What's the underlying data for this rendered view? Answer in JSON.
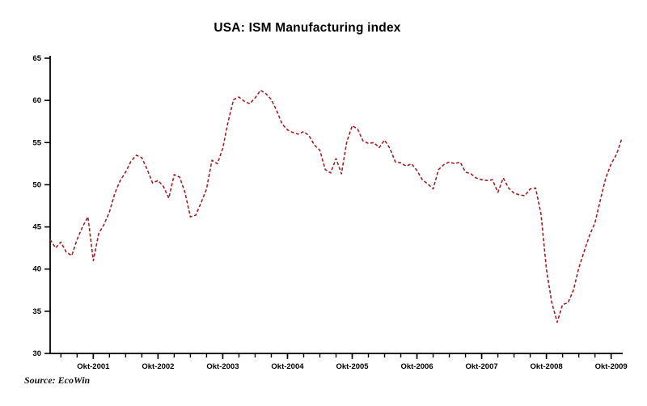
{
  "title": "USA: ISM Manufacturing index",
  "source_label": "Source: EcoWin",
  "chart_data": {
    "type": "line",
    "title": "USA: ISM Manufacturing index",
    "xlabel": "",
    "ylabel": "",
    "ylim": [
      30,
      65
    ],
    "y_ticks": [
      30,
      35,
      40,
      45,
      50,
      55,
      60,
      65
    ],
    "grid": false,
    "legend": "none",
    "x_start": {
      "year": 2001,
      "month": 2
    },
    "frequency": "monthly",
    "x_tick_labels": [
      "Okt-2001",
      "Okt-2002",
      "Okt-2003",
      "Okt-2004",
      "Okt-2005",
      "Okt-2006",
      "Okt-2007",
      "Okt-2008",
      "Okt-2009"
    ],
    "label_month": 10,
    "minor_tick_every_months": 3,
    "series": [
      {
        "name": "ISM Manufacturing index",
        "color": "#9f2125",
        "dash": "4 2.5",
        "values": [
          43.5,
          42.5,
          43.2,
          42.0,
          41.6,
          43.5,
          45.0,
          46.2,
          41.0,
          44.2,
          45.3,
          46.8,
          49.0,
          50.5,
          51.5,
          52.8,
          53.5,
          53.2,
          51.8,
          50.2,
          50.5,
          49.8,
          48.4,
          51.2,
          50.9,
          49.1,
          46.2,
          46.4,
          47.9,
          49.5,
          52.9,
          52.5,
          54.3,
          57.5,
          60.1,
          60.4,
          59.9,
          59.6,
          60.3,
          61.2,
          60.8,
          60.1,
          58.8,
          57.2,
          56.5,
          56.2,
          56.0,
          56.3,
          55.8,
          54.7,
          54.1,
          51.8,
          51.4,
          53.1,
          51.3,
          55.1,
          57.0,
          56.6,
          55.2,
          54.9,
          55.0,
          54.4,
          55.3,
          54.3,
          52.7,
          52.6,
          52.2,
          52.5,
          51.7,
          50.6,
          50.1,
          49.5,
          51.8,
          52.4,
          52.7,
          52.5,
          52.7,
          51.5,
          51.3,
          50.8,
          50.6,
          50.5,
          50.6,
          49.1,
          50.8,
          49.6,
          49.0,
          48.8,
          48.7,
          49.5,
          49.6,
          46.5,
          40.0,
          36.0,
          33.7,
          35.8,
          36.0,
          37.5,
          40.1,
          42.1,
          44.0,
          45.5,
          48.2,
          50.8,
          52.5,
          53.6,
          55.5
        ]
      }
    ],
    "axis_color": "#000000",
    "tick_label_color": "#000000"
  }
}
